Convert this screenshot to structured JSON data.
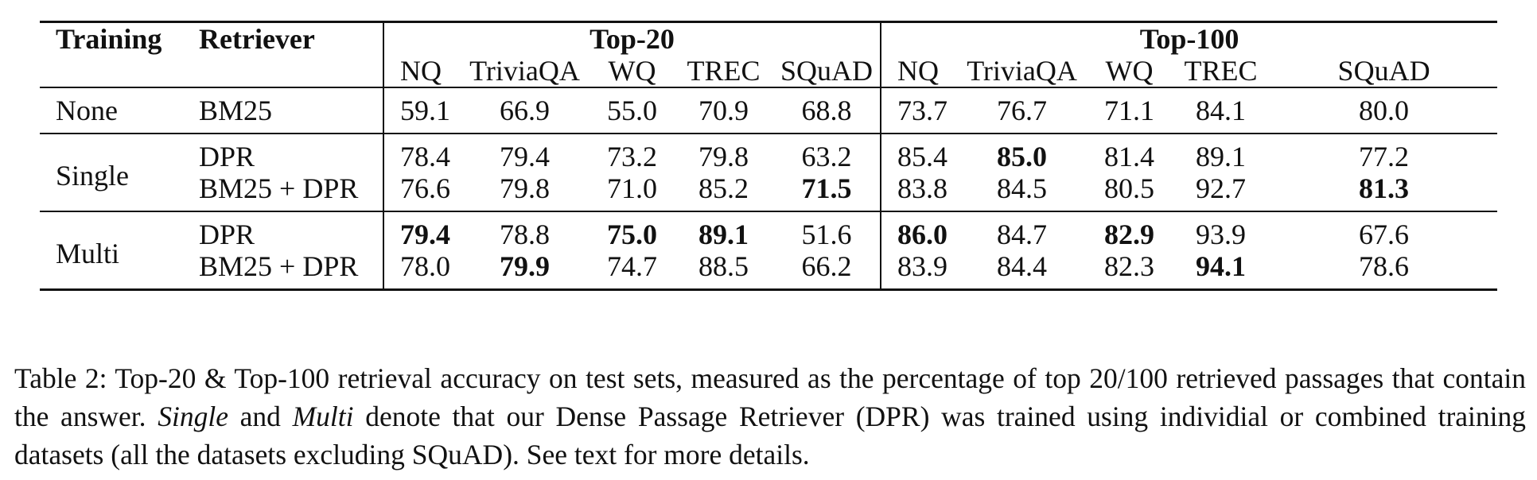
{
  "table": {
    "headers": {
      "training": "Training",
      "retriever": "Retriever",
      "group1": "Top-20",
      "group2": "Top-100",
      "columns": [
        "NQ",
        "TriviaQA",
        "WQ",
        "TREC",
        "SQuAD",
        "NQ",
        "TriviaQA",
        "WQ",
        "TREC",
        "SQuAD"
      ]
    },
    "groups": [
      {
        "training": "None",
        "rows": [
          {
            "retriever": "BM25",
            "values": [
              "59.1",
              "66.9",
              "55.0",
              "70.9",
              "68.8",
              "73.7",
              "76.7",
              "71.1",
              "84.1",
              "80.0"
            ],
            "bold": [
              false,
              false,
              false,
              false,
              false,
              false,
              false,
              false,
              false,
              false
            ]
          }
        ]
      },
      {
        "training": "Single",
        "rows": [
          {
            "retriever": "DPR",
            "values": [
              "78.4",
              "79.4",
              "73.2",
              "79.8",
              "63.2",
              "85.4",
              "85.0",
              "81.4",
              "89.1",
              "77.2"
            ],
            "bold": [
              false,
              false,
              false,
              false,
              false,
              false,
              true,
              false,
              false,
              false
            ]
          },
          {
            "retriever": "BM25 + DPR",
            "values": [
              "76.6",
              "79.8",
              "71.0",
              "85.2",
              "71.5",
              "83.8",
              "84.5",
              "80.5",
              "92.7",
              "81.3"
            ],
            "bold": [
              false,
              false,
              false,
              false,
              true,
              false,
              false,
              false,
              false,
              true
            ]
          }
        ]
      },
      {
        "training": "Multi",
        "rows": [
          {
            "retriever": "DPR",
            "values": [
              "79.4",
              "78.8",
              "75.0",
              "89.1",
              "51.6",
              "86.0",
              "84.7",
              "82.9",
              "93.9",
              "67.6"
            ],
            "bold": [
              true,
              false,
              true,
              true,
              false,
              true,
              false,
              true,
              false,
              false
            ]
          },
          {
            "retriever": "BM25 + DPR",
            "values": [
              "78.0",
              "79.9",
              "74.7",
              "88.5",
              "66.2",
              "83.9",
              "84.4",
              "82.3",
              "94.1",
              "78.6"
            ],
            "bold": [
              false,
              true,
              false,
              false,
              false,
              false,
              false,
              false,
              true,
              false
            ]
          }
        ]
      }
    ]
  },
  "caption": {
    "part1": "Table 2:  Top-20 & Top-100 retrieval accuracy on test sets, measured as the percentage of top 20/100 retrieved passages that contain the answer. ",
    "single": "Single",
    "part2": " and ",
    "multi": "Multi",
    "part3": " denote that our Dense Passage Retriever (DPR) was trained using individial or combined training datasets (all the datasets excluding SQuAD). See text for more details."
  }
}
